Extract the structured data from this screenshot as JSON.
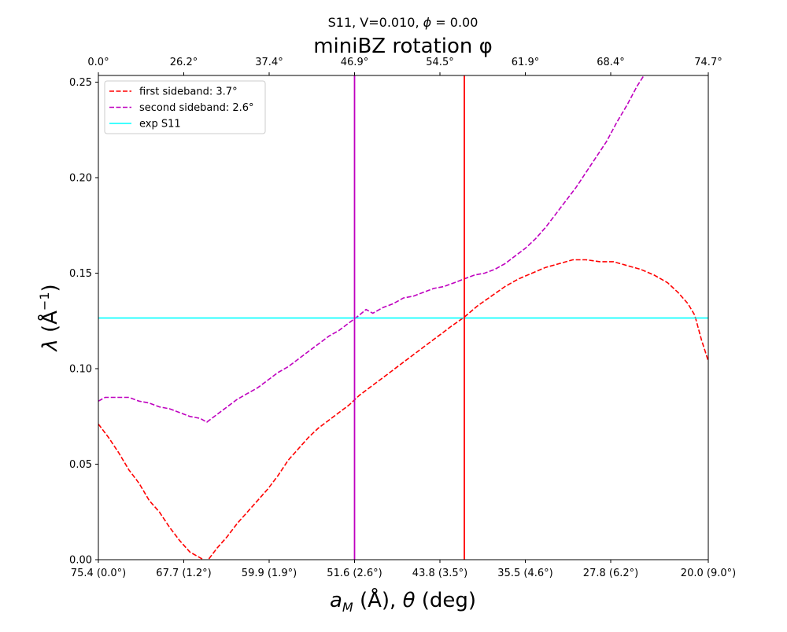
{
  "figure": {
    "suptitle": "S11, V=0.010, $\\phi = 0.00$",
    "suptitle_display": "S11, V=0.010, ϕ = 0.00"
  },
  "chart_data": {
    "type": "line",
    "xlabel": "a_M (Å), θ (deg)",
    "ylabel": "λ (Å⁻¹)",
    "top_xlabel": "miniBZ rotation φ",
    "ylim": [
      0.0,
      0.2535
    ],
    "xlim": [
      0.0,
      9.0
    ],
    "grid": false,
    "legend_placement": "top-left",
    "x_ticks": [
      {
        "x": 0.0,
        "label": "75.4 (0.0°)"
      },
      {
        "x": 1.26,
        "label": "67.7 (1.2°)"
      },
      {
        "x": 2.52,
        "label": "59.9 (1.9°)"
      },
      {
        "x": 3.78,
        "label": "51.6 (2.6°)"
      },
      {
        "x": 5.04,
        "label": "43.8 (3.5°)"
      },
      {
        "x": 6.3,
        "label": "35.5 (4.6°)"
      },
      {
        "x": 7.56,
        "label": "27.8 (6.2°)"
      },
      {
        "x": 9.0,
        "label": "20.0 (9.0°)"
      }
    ],
    "top_ticks": [
      {
        "x": 0.0,
        "label": "0.0°"
      },
      {
        "x": 1.26,
        "label": "26.2°"
      },
      {
        "x": 2.52,
        "label": "37.4°"
      },
      {
        "x": 3.78,
        "label": "46.9°"
      },
      {
        "x": 5.04,
        "label": "54.5°"
      },
      {
        "x": 6.3,
        "label": "61.9°"
      },
      {
        "x": 7.56,
        "label": "68.4°"
      },
      {
        "x": 9.0,
        "label": "74.7°"
      }
    ],
    "y_ticks": [
      {
        "y": 0.0,
        "label": "0.00"
      },
      {
        "y": 0.05,
        "label": "0.05"
      },
      {
        "y": 0.1,
        "label": "0.10"
      },
      {
        "y": 0.15,
        "label": "0.15"
      },
      {
        "y": 0.2,
        "label": "0.20"
      },
      {
        "y": 0.25,
        "label": "0.25"
      }
    ],
    "series": [
      {
        "name": "first sideband: 3.7°",
        "color": "#ff0000",
        "dash": "dashed",
        "points": [
          [
            0.0,
            0.071
          ],
          [
            0.15,
            0.064
          ],
          [
            0.3,
            0.056
          ],
          [
            0.45,
            0.047
          ],
          [
            0.6,
            0.04
          ],
          [
            0.75,
            0.031
          ],
          [
            0.9,
            0.025
          ],
          [
            1.05,
            0.017
          ],
          [
            1.2,
            0.01
          ],
          [
            1.35,
            0.004
          ],
          [
            1.6,
            -0.001
          ],
          [
            1.75,
            0.006
          ],
          [
            1.9,
            0.012
          ],
          [
            2.05,
            0.019
          ],
          [
            2.2,
            0.025
          ],
          [
            2.35,
            0.031
          ],
          [
            2.5,
            0.037
          ],
          [
            2.65,
            0.044
          ],
          [
            2.8,
            0.052
          ],
          [
            2.95,
            0.058
          ],
          [
            3.1,
            0.064
          ],
          [
            3.25,
            0.069
          ],
          [
            3.4,
            0.073
          ],
          [
            3.55,
            0.077
          ],
          [
            3.7,
            0.081
          ],
          [
            3.85,
            0.086
          ],
          [
            4.0,
            0.09
          ],
          [
            4.15,
            0.094
          ],
          [
            4.3,
            0.098
          ],
          [
            4.45,
            0.102
          ],
          [
            4.6,
            0.106
          ],
          [
            4.75,
            0.11
          ],
          [
            4.9,
            0.114
          ],
          [
            5.05,
            0.118
          ],
          [
            5.2,
            0.122
          ],
          [
            5.4,
            0.127
          ],
          [
            5.6,
            0.133
          ],
          [
            5.8,
            0.138
          ],
          [
            6.0,
            0.143
          ],
          [
            6.2,
            0.147
          ],
          [
            6.4,
            0.15
          ],
          [
            6.6,
            0.153
          ],
          [
            6.8,
            0.155
          ],
          [
            7.0,
            0.157
          ],
          [
            7.2,
            0.157
          ],
          [
            7.4,
            0.156
          ],
          [
            7.6,
            0.156
          ],
          [
            7.8,
            0.154
          ],
          [
            8.0,
            0.152
          ],
          [
            8.2,
            0.149
          ],
          [
            8.4,
            0.145
          ],
          [
            8.55,
            0.14
          ],
          [
            8.7,
            0.134
          ],
          [
            8.8,
            0.128
          ],
          [
            8.9,
            0.115
          ],
          [
            9.0,
            0.104
          ]
        ]
      },
      {
        "name": "second sideband: 2.6°",
        "color": "#bf00bf",
        "dash": "dashed",
        "points": [
          [
            0.0,
            0.083
          ],
          [
            0.1,
            0.085
          ],
          [
            0.3,
            0.085
          ],
          [
            0.45,
            0.085
          ],
          [
            0.6,
            0.083
          ],
          [
            0.75,
            0.082
          ],
          [
            0.9,
            0.08
          ],
          [
            1.05,
            0.079
          ],
          [
            1.2,
            0.077
          ],
          [
            1.35,
            0.075
          ],
          [
            1.5,
            0.074
          ],
          [
            1.6,
            0.072
          ],
          [
            1.75,
            0.076
          ],
          [
            1.9,
            0.08
          ],
          [
            2.05,
            0.084
          ],
          [
            2.2,
            0.087
          ],
          [
            2.35,
            0.09
          ],
          [
            2.5,
            0.094
          ],
          [
            2.65,
            0.098
          ],
          [
            2.8,
            0.101
          ],
          [
            2.95,
            0.105
          ],
          [
            3.1,
            0.109
          ],
          [
            3.25,
            0.113
          ],
          [
            3.4,
            0.117
          ],
          [
            3.55,
            0.12
          ],
          [
            3.7,
            0.124
          ],
          [
            3.85,
            0.128
          ],
          [
            3.95,
            0.131
          ],
          [
            4.05,
            0.129
          ],
          [
            4.2,
            0.132
          ],
          [
            4.35,
            0.134
          ],
          [
            4.5,
            0.137
          ],
          [
            4.65,
            0.138
          ],
          [
            4.8,
            0.14
          ],
          [
            4.95,
            0.142
          ],
          [
            5.1,
            0.143
          ],
          [
            5.25,
            0.145
          ],
          [
            5.4,
            0.147
          ],
          [
            5.55,
            0.149
          ],
          [
            5.7,
            0.15
          ],
          [
            5.85,
            0.152
          ],
          [
            6.0,
            0.155
          ],
          [
            6.15,
            0.159
          ],
          [
            6.3,
            0.163
          ],
          [
            6.45,
            0.168
          ],
          [
            6.6,
            0.174
          ],
          [
            6.75,
            0.181
          ],
          [
            6.9,
            0.188
          ],
          [
            7.05,
            0.195
          ],
          [
            7.2,
            0.203
          ],
          [
            7.35,
            0.211
          ],
          [
            7.5,
            0.219
          ],
          [
            7.65,
            0.229
          ],
          [
            7.8,
            0.238
          ],
          [
            7.95,
            0.248
          ],
          [
            8.05,
            0.2535
          ]
        ]
      },
      {
        "name": "exp S11",
        "color": "#00ffff",
        "dash": "solid",
        "points": [
          [
            0.0,
            0.1265
          ],
          [
            9.0,
            0.1265
          ]
        ]
      }
    ],
    "vlines": [
      {
        "x": 3.78,
        "color": "#bf00bf"
      },
      {
        "x": 5.4,
        "color": "#ff0000"
      }
    ]
  }
}
